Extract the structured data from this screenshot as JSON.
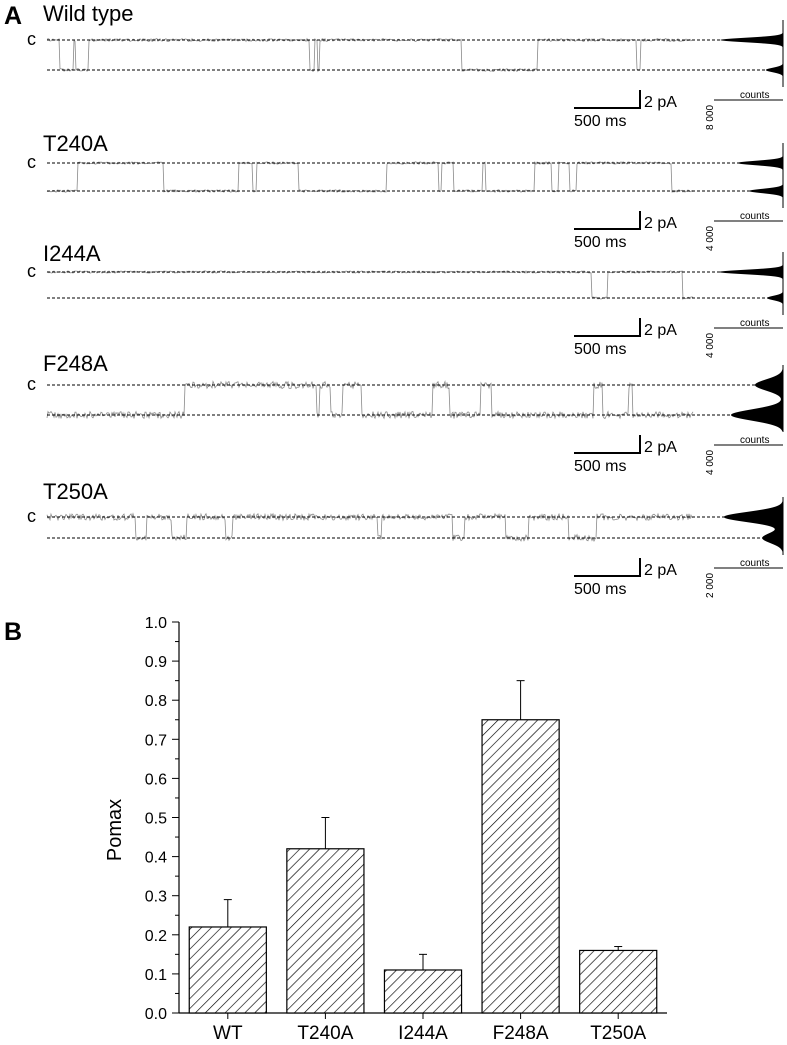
{
  "panel_a": {
    "letter": "A",
    "closed_label": "c",
    "scale_current": "2 pA",
    "scale_time": "500 ms",
    "hist_axis_label": "counts",
    "traces": [
      {
        "name": "Wild type",
        "hist_count": "8 000"
      },
      {
        "name": "T240A",
        "hist_count": "4 000"
      },
      {
        "name": "I244A",
        "hist_count": "4 000"
      },
      {
        "name": "F248A",
        "hist_count": "4 000"
      },
      {
        "name": "T250A",
        "hist_count": "2 000"
      }
    ]
  },
  "panel_b": {
    "letter": "B"
  },
  "chart_data": {
    "type": "bar",
    "title": "",
    "xlabel": "",
    "ylabel": "Pomax",
    "categories": [
      "WT",
      "T240A",
      "I244A",
      "F248A",
      "T250A"
    ],
    "values": [
      0.22,
      0.42,
      0.11,
      0.75,
      0.16
    ],
    "errors": [
      0.07,
      0.08,
      0.04,
      0.1,
      0.01
    ],
    "ylim": [
      0.0,
      1.0
    ],
    "yticks": [
      "0.0",
      "0.1",
      "0.2",
      "0.3",
      "0.4",
      "0.5",
      "0.6",
      "0.7",
      "0.8",
      "0.9",
      "1.0"
    ],
    "bar_fill": "hatched",
    "grid": false
  }
}
